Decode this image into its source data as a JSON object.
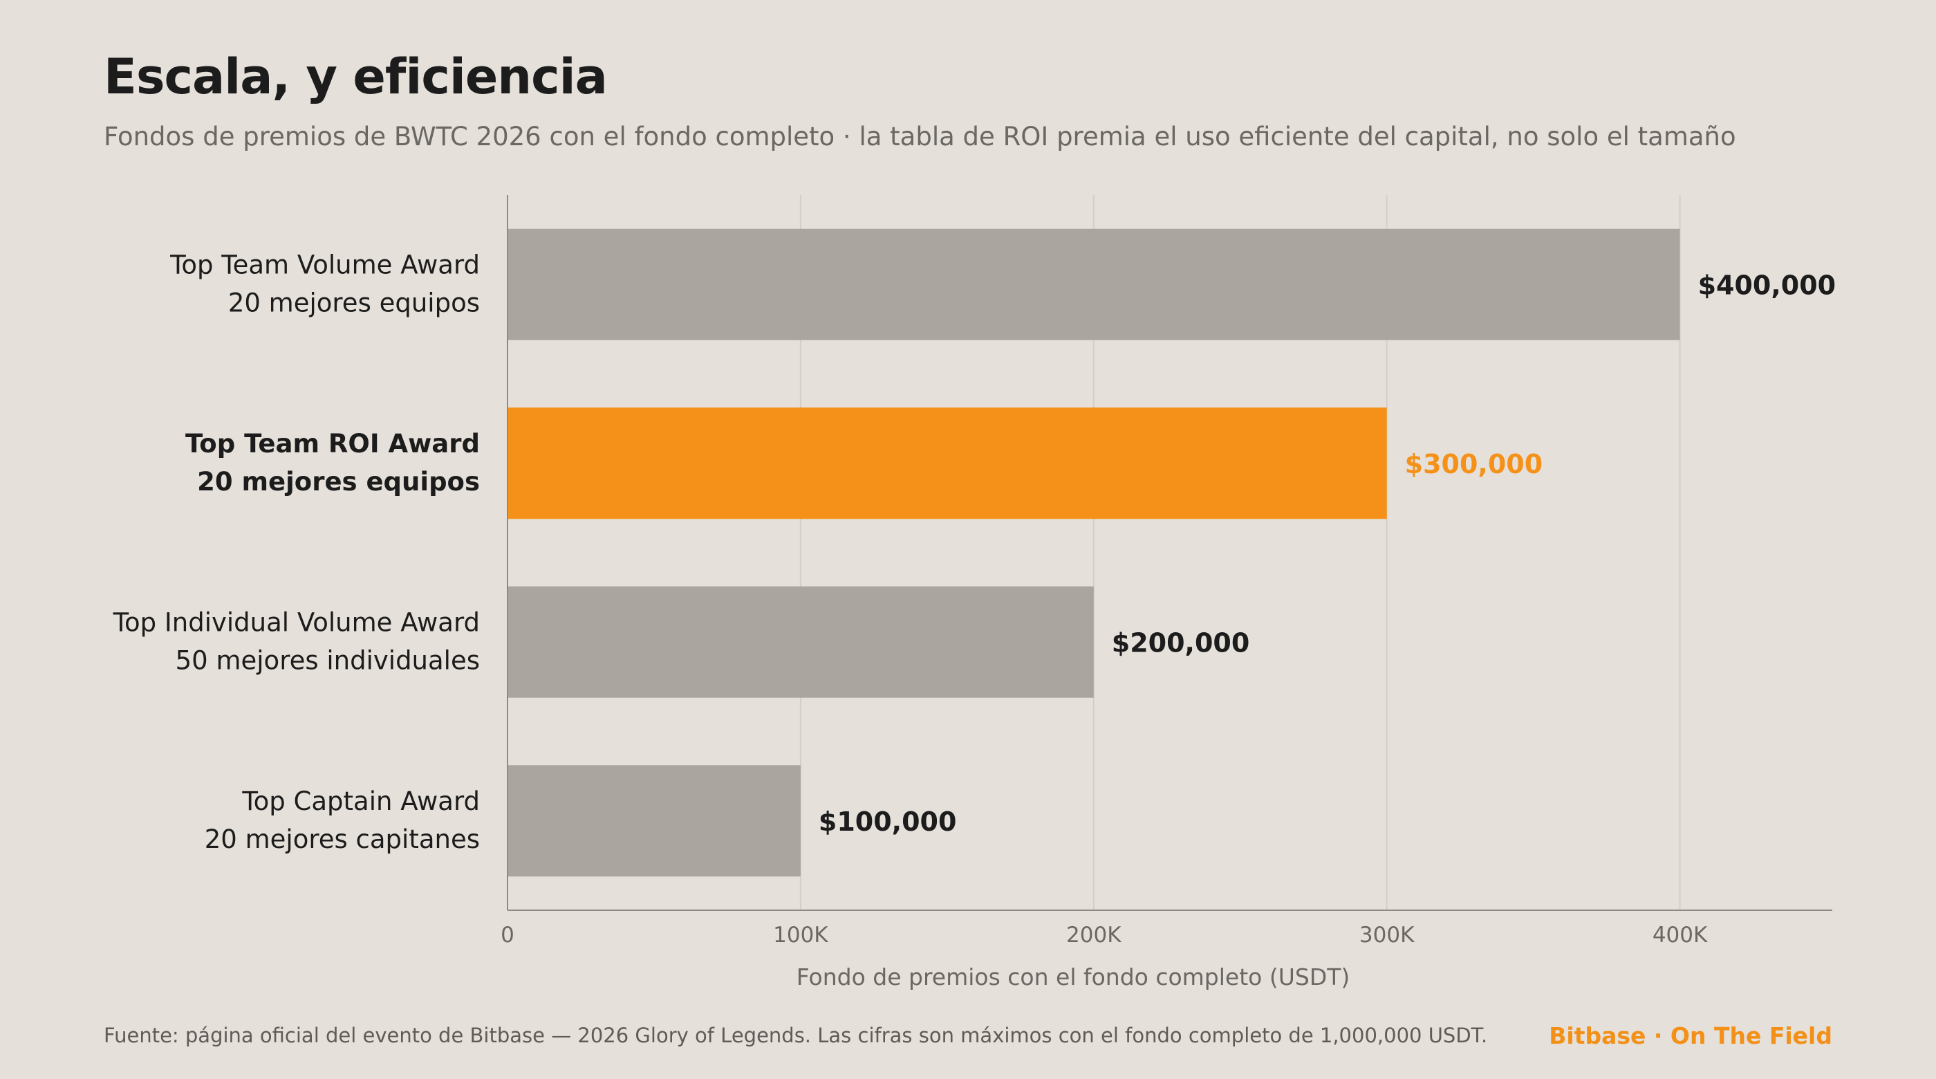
{
  "header": {
    "title": "Escala, y eficiencia",
    "subtitle": "Fondos de premios de BWTC 2026 con el fondo completo · la tabla de ROI premia el uso eficiente del capital, no solo el tamaño"
  },
  "chart_data": {
    "type": "bar",
    "orientation": "horizontal",
    "categories": [
      [
        "Top Team Volume Award",
        "20 mejores equipos"
      ],
      [
        "Top Team ROI Award",
        "20 mejores equipos"
      ],
      [
        "Top Individual Volume Award",
        "50 mejores individuales"
      ],
      [
        "Top Captain Award",
        "20 mejores capitanes"
      ]
    ],
    "values": [
      400000,
      300000,
      200000,
      100000
    ],
    "value_labels": [
      "$400,000",
      "$300,000",
      "$200,000",
      "$100,000"
    ],
    "highlight_index": 1,
    "xlabel": "Fondo de premios con el fondo completo (USDT)",
    "xticks": [
      0,
      100000,
      200000,
      300000,
      400000
    ],
    "xtick_labels": [
      "0",
      "100K",
      "200K",
      "300K",
      "400K"
    ],
    "xlim": [
      0,
      452000
    ],
    "grid": "vertical",
    "colors": {
      "default_bar": "#aaa59f",
      "highlight_bar": "#f59119",
      "highlight_label": "#f59119",
      "label": "#1c1c1c",
      "grid": "#d3cec8",
      "axis": "#8f8a85"
    }
  },
  "footer": {
    "source": "Fuente: página oficial del evento de Bitbase — 2026 Glory of Legends. Las cifras son máximos con el fondo completo de 1,000,000 USDT.",
    "brand": "Bitbase · On The Field"
  }
}
